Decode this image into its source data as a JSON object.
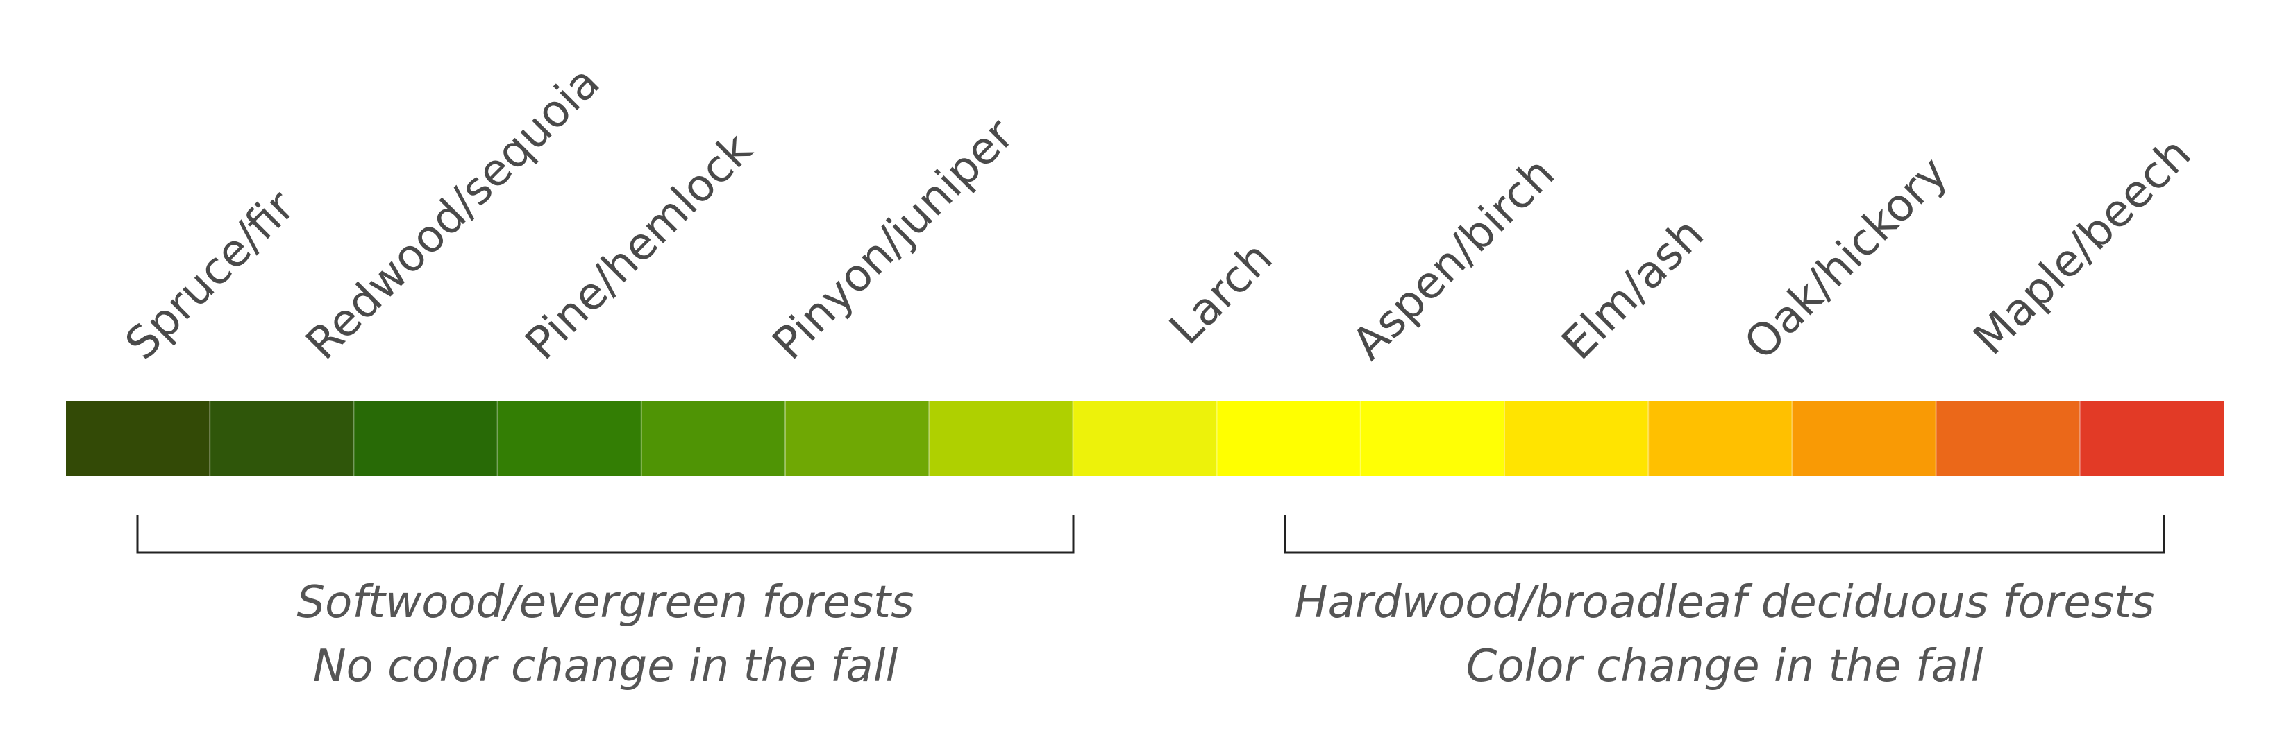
{
  "forest_labels": [
    "Spruce/fir",
    "Redwood/sequoia",
    "Pine/hemlock",
    "Pinyon/juniper",
    "Larch",
    "Aspen/birch",
    "Elm/ash",
    "Oak/hickory",
    "Maple/beech"
  ],
  "color_scale": [
    "#334a06",
    "#2f560a",
    "#286a06",
    "#337e04",
    "#4f9405",
    "#6fa804",
    "#afd000",
    "#edf20a",
    "#ffff00",
    "#ffff05",
    "#ffe400",
    "#ffc000",
    "#f99a05",
    "#eb6819",
    "#e23a26"
  ],
  "groups": {
    "softwood": {
      "line1": "Softwood/evergreen forests",
      "line2": "No color change in the fall"
    },
    "hardwood": {
      "line1": "Hardwood/broadleaf deciduous forests",
      "line2": "Color change in the fall"
    }
  }
}
